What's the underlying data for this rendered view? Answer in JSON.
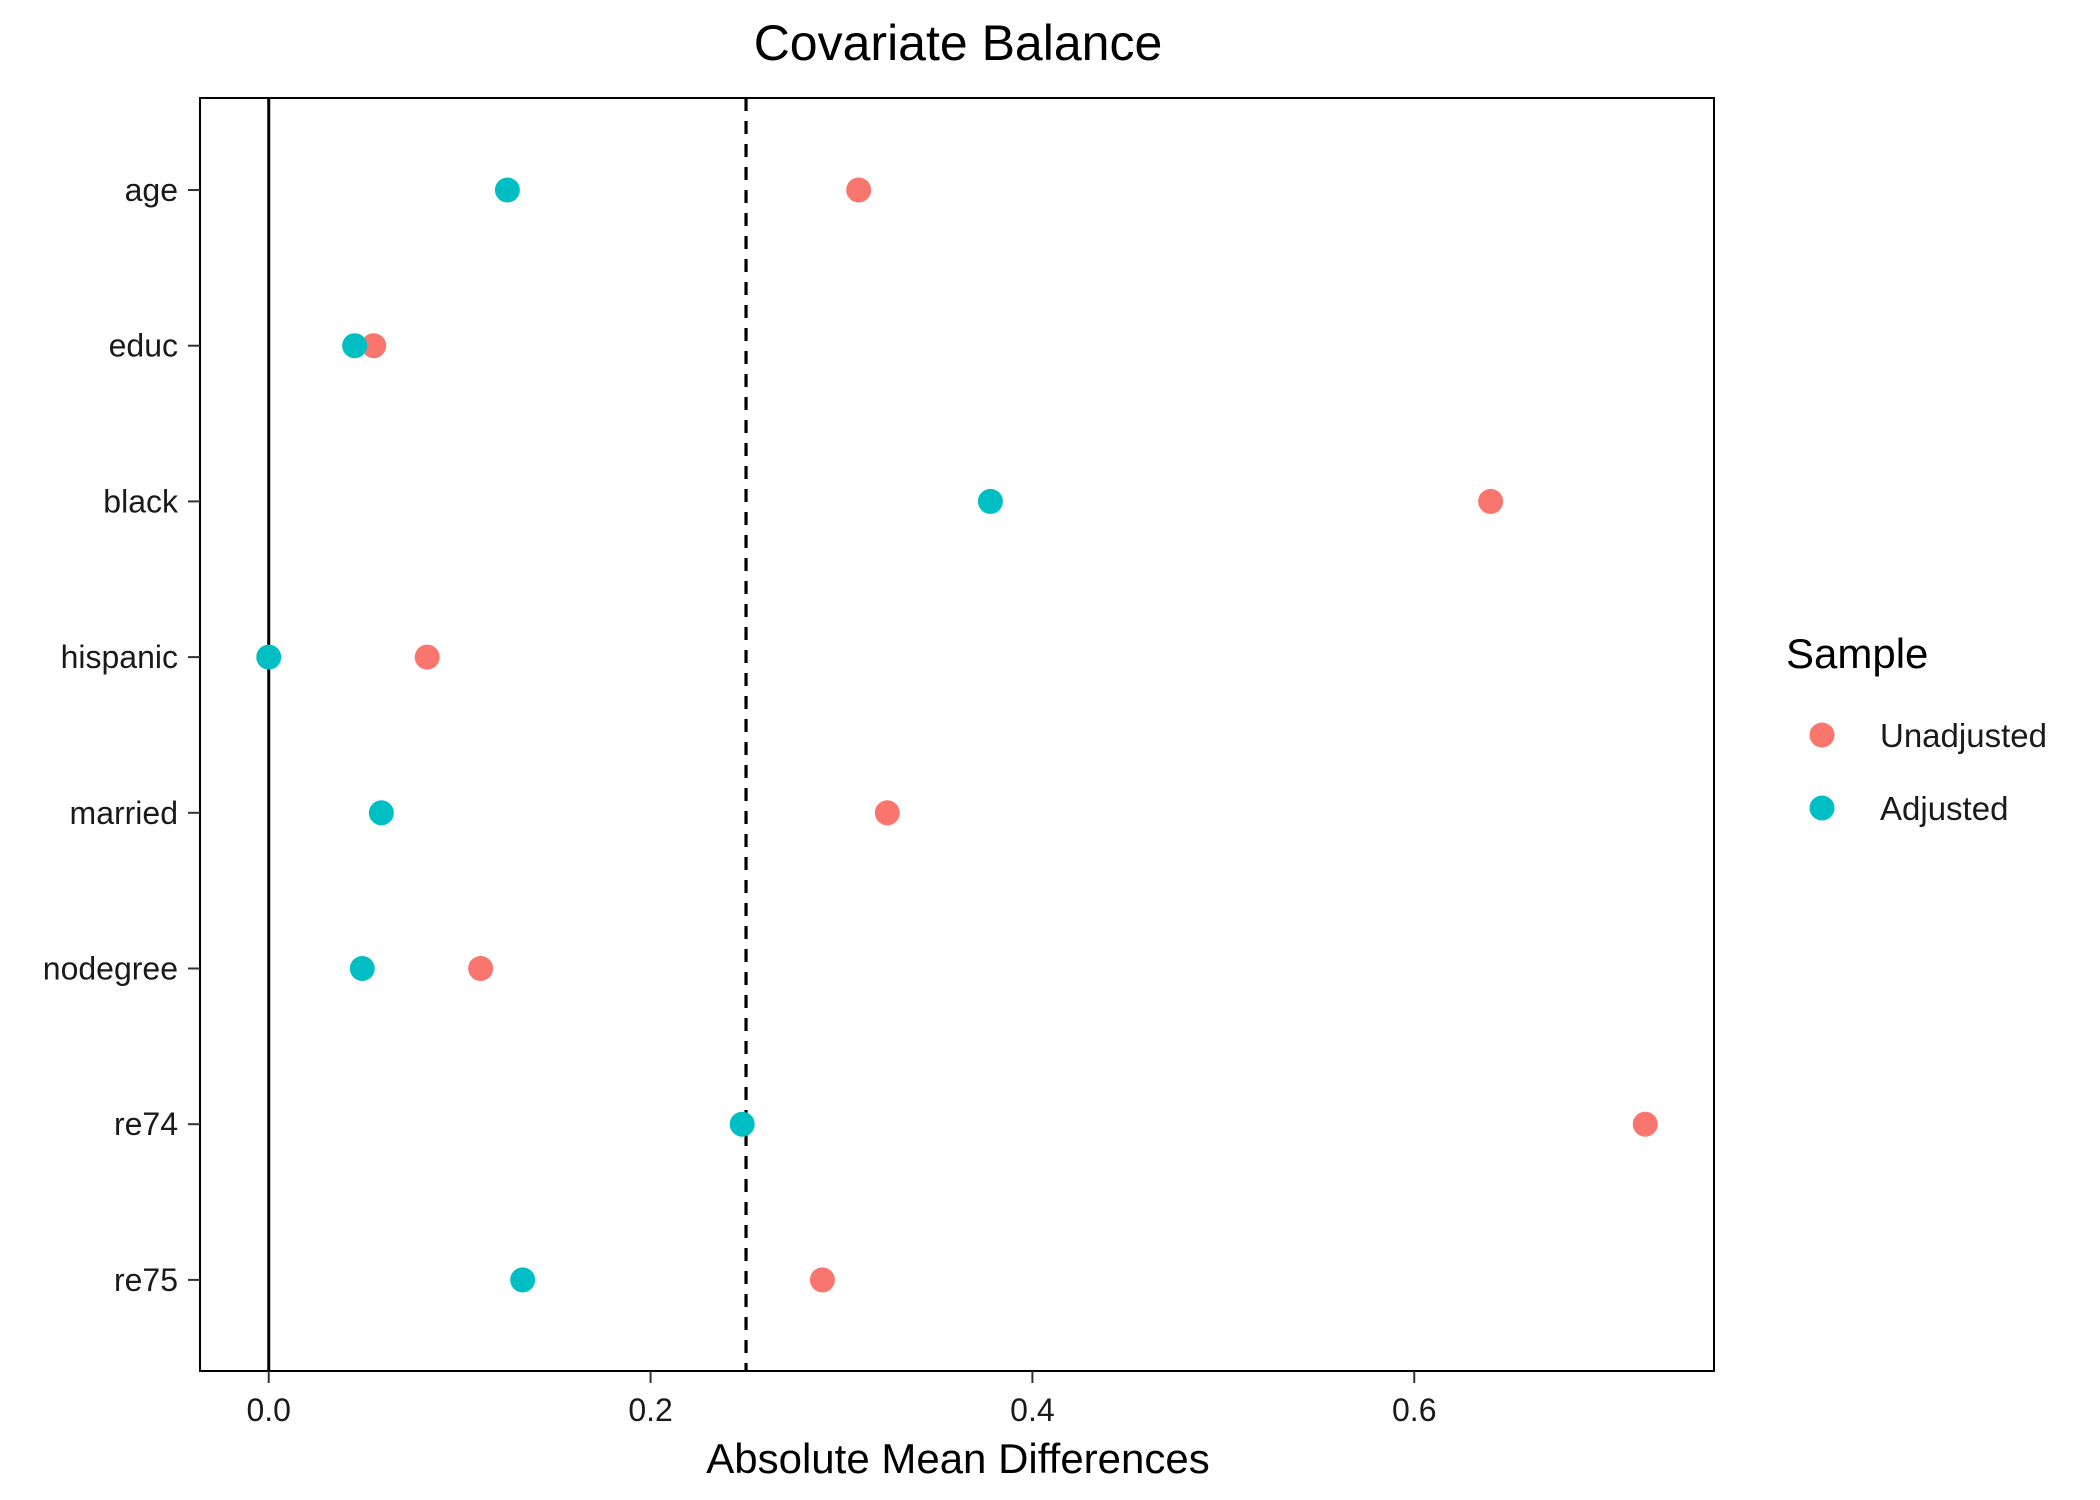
{
  "chart_data": {
    "type": "scatter",
    "title": "Covariate Balance",
    "xlabel": "Absolute Mean Differences",
    "ylabel": "",
    "xlim": [
      -0.036,
      0.757
    ],
    "xticks": [
      0.0,
      0.2,
      0.4,
      0.6
    ],
    "xtick_labels": [
      "0.0",
      "0.2",
      "0.4",
      "0.6"
    ],
    "categories": [
      "age",
      "educ",
      "black",
      "hispanic",
      "married",
      "nodegree",
      "re74",
      "re75"
    ],
    "reference_lines": [
      {
        "x": 0.0,
        "style": "solid"
      },
      {
        "x": 0.25,
        "style": "dashed"
      }
    ],
    "grid": false,
    "legend": {
      "title": "Sample",
      "position": "right"
    },
    "series": [
      {
        "name": "Unadjusted",
        "color": "#F8766D",
        "values": [
          0.309,
          0.055,
          0.64,
          0.083,
          0.324,
          0.111,
          0.721,
          0.29
        ]
      },
      {
        "name": "Adjusted",
        "color": "#00BFC4",
        "values": [
          0.125,
          0.045,
          0.378,
          0.0,
          0.059,
          0.049,
          0.248,
          0.133
        ]
      }
    ]
  }
}
